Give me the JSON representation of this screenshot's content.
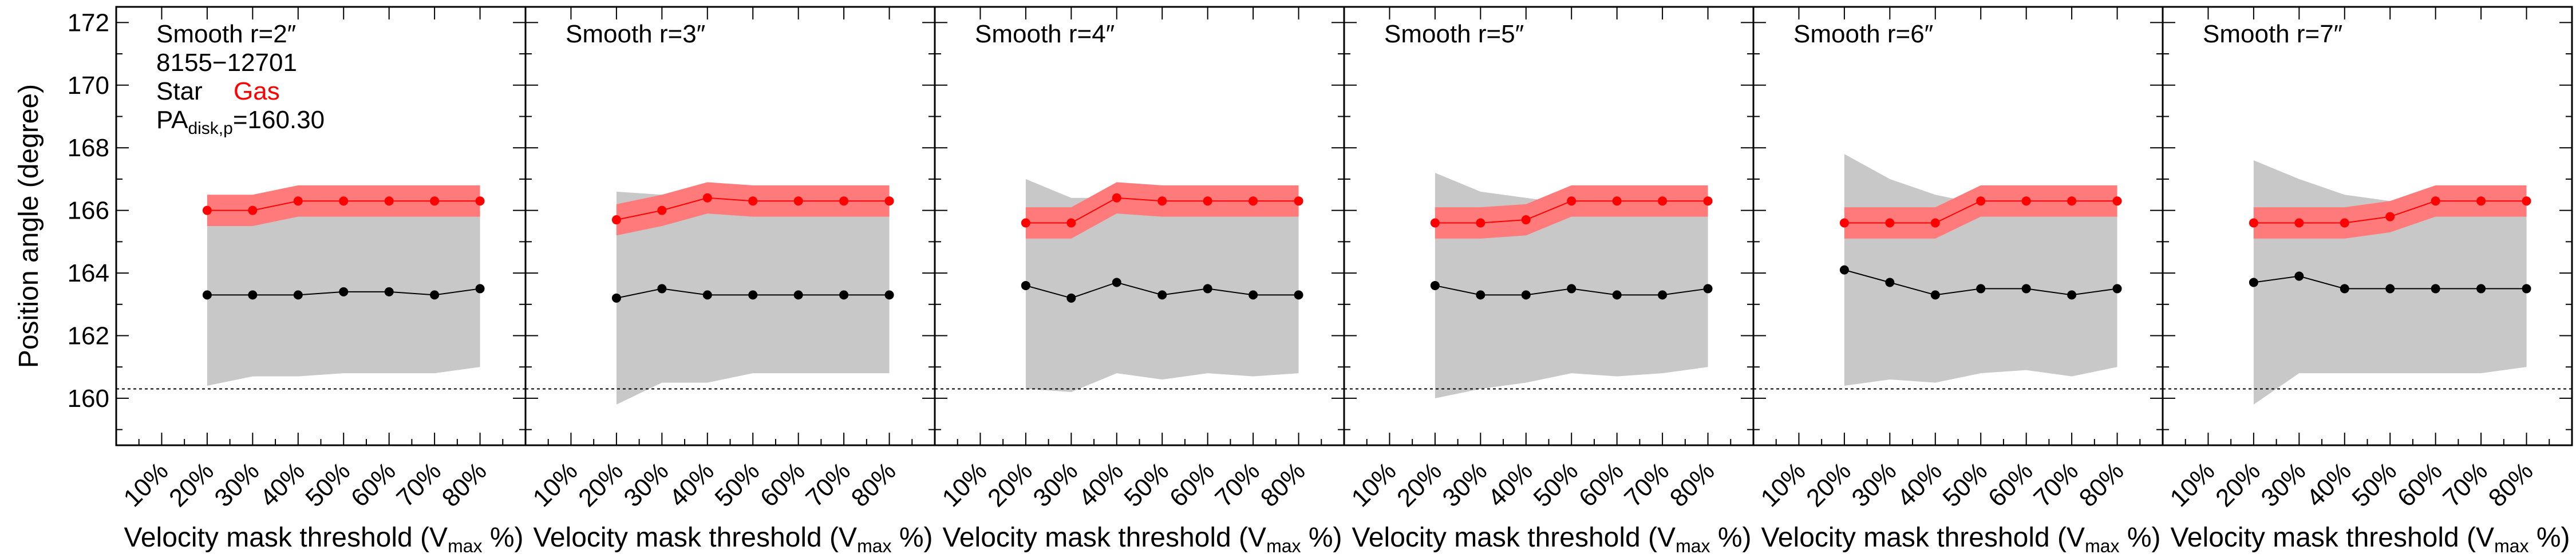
{
  "chart_data": [
    {
      "type": "line",
      "title": "Smooth r=2″",
      "annotations": [
        "8155−12701"
      ],
      "legend": {
        "star_label": "Star",
        "gas_label": "Gas",
        "pa_main": "PA",
        "pa_sub": "disk,p",
        "pa_value": "=160.30"
      },
      "ylabel": "Position angle (degree)",
      "xlabel": {
        "main": "Velocity mask threshold (V",
        "sub": "max",
        "tail": " %)"
      },
      "categories": [
        "10%",
        "20%",
        "30%",
        "40%",
        "50%",
        "60%",
        "70%",
        "80%"
      ],
      "ylim": [
        158.5,
        172.5
      ],
      "yticks": [
        160,
        162,
        164,
        166,
        168,
        170,
        172
      ],
      "reference_line": 160.3,
      "series": [
        {
          "name": "Star",
          "color": "#000000",
          "x": [
            20,
            30,
            40,
            50,
            60,
            70,
            80
          ],
          "values": [
            163.3,
            163.3,
            163.3,
            163.4,
            163.4,
            163.3,
            163.5
          ],
          "band_lower": [
            160.4,
            160.7,
            160.7,
            160.8,
            160.8,
            160.8,
            161.0
          ],
          "band_upper": [
            165.8,
            165.8,
            166.0,
            166.0,
            166.0,
            166.0,
            166.0
          ],
          "band_color": "#c8c8c8"
        },
        {
          "name": "Gas",
          "color": "#ff0000",
          "x": [
            20,
            30,
            40,
            50,
            60,
            70,
            80
          ],
          "values": [
            166.0,
            166.0,
            166.3,
            166.3,
            166.3,
            166.3,
            166.3
          ],
          "band_lower": [
            165.5,
            165.5,
            165.8,
            165.8,
            165.8,
            165.8,
            165.8
          ],
          "band_upper": [
            166.5,
            166.5,
            166.8,
            166.8,
            166.8,
            166.8,
            166.8
          ],
          "band_color": "#ff7b7b"
        }
      ]
    },
    {
      "type": "line",
      "title": "Smooth r=3″",
      "xlabel": {
        "main": "Velocity mask threshold (V",
        "sub": "max",
        "tail": " %)"
      },
      "categories": [
        "10%",
        "20%",
        "30%",
        "40%",
        "50%",
        "60%",
        "70%",
        "80%"
      ],
      "ylim": [
        158.5,
        172.5
      ],
      "reference_line": 160.3,
      "series": [
        {
          "name": "Star",
          "color": "#000000",
          "x": [
            20,
            30,
            40,
            50,
            60,
            70,
            80
          ],
          "values": [
            163.2,
            163.5,
            163.3,
            163.3,
            163.3,
            163.3,
            163.3
          ],
          "band_lower": [
            159.8,
            160.5,
            160.5,
            160.8,
            160.8,
            160.8,
            160.8
          ],
          "band_upper": [
            166.6,
            166.5,
            166.4,
            166.2,
            166.2,
            166.2,
            166.2
          ],
          "band_color": "#c8c8c8"
        },
        {
          "name": "Gas",
          "color": "#ff0000",
          "x": [
            20,
            30,
            40,
            50,
            60,
            70,
            80
          ],
          "values": [
            165.7,
            166.0,
            166.4,
            166.3,
            166.3,
            166.3,
            166.3
          ],
          "band_lower": [
            165.2,
            165.5,
            165.9,
            165.8,
            165.8,
            165.8,
            165.8
          ],
          "band_upper": [
            166.2,
            166.5,
            166.9,
            166.8,
            166.8,
            166.8,
            166.8
          ],
          "band_color": "#ff7b7b"
        }
      ]
    },
    {
      "type": "line",
      "title": "Smooth r=4″",
      "xlabel": {
        "main": "Velocity mask threshold (V",
        "sub": "max",
        "tail": " %)"
      },
      "categories": [
        "10%",
        "20%",
        "30%",
        "40%",
        "50%",
        "60%",
        "70%",
        "80%"
      ],
      "ylim": [
        158.5,
        172.5
      ],
      "reference_line": 160.3,
      "series": [
        {
          "name": "Star",
          "color": "#000000",
          "x": [
            20,
            30,
            40,
            50,
            60,
            70,
            80
          ],
          "values": [
            163.6,
            163.2,
            163.7,
            163.3,
            163.5,
            163.3,
            163.3
          ],
          "band_lower": [
            160.3,
            160.2,
            160.8,
            160.6,
            160.8,
            160.7,
            160.8
          ],
          "band_upper": [
            167.0,
            166.4,
            166.4,
            166.2,
            166.2,
            166.2,
            166.2
          ],
          "band_color": "#c8c8c8"
        },
        {
          "name": "Gas",
          "color": "#ff0000",
          "x": [
            20,
            30,
            40,
            50,
            60,
            70,
            80
          ],
          "values": [
            165.6,
            165.6,
            166.4,
            166.3,
            166.3,
            166.3,
            166.3
          ],
          "band_lower": [
            165.1,
            165.1,
            165.9,
            165.8,
            165.8,
            165.8,
            165.8
          ],
          "band_upper": [
            166.1,
            166.1,
            166.9,
            166.8,
            166.8,
            166.8,
            166.8
          ],
          "band_color": "#ff7b7b"
        }
      ]
    },
    {
      "type": "line",
      "title": "Smooth r=5″",
      "xlabel": {
        "main": "Velocity mask threshold (V",
        "sub": "max",
        "tail": " %)"
      },
      "categories": [
        "10%",
        "20%",
        "30%",
        "40%",
        "50%",
        "60%",
        "70%",
        "80%"
      ],
      "ylim": [
        158.5,
        172.5
      ],
      "reference_line": 160.3,
      "series": [
        {
          "name": "Star",
          "color": "#000000",
          "x": [
            20,
            30,
            40,
            50,
            60,
            70,
            80
          ],
          "values": [
            163.6,
            163.3,
            163.3,
            163.5,
            163.3,
            163.3,
            163.5
          ],
          "band_lower": [
            160.0,
            160.3,
            160.5,
            160.8,
            160.7,
            160.8,
            161.0
          ],
          "band_upper": [
            167.2,
            166.6,
            166.4,
            166.2,
            166.2,
            166.2,
            166.2
          ],
          "band_color": "#c8c8c8"
        },
        {
          "name": "Gas",
          "color": "#ff0000",
          "x": [
            20,
            30,
            40,
            50,
            60,
            70,
            80
          ],
          "values": [
            165.6,
            165.6,
            165.7,
            166.3,
            166.3,
            166.3,
            166.3
          ],
          "band_lower": [
            165.1,
            165.1,
            165.2,
            165.8,
            165.8,
            165.8,
            165.8
          ],
          "band_upper": [
            166.1,
            166.1,
            166.2,
            166.8,
            166.8,
            166.8,
            166.8
          ],
          "band_color": "#ff7b7b"
        }
      ]
    },
    {
      "type": "line",
      "title": "Smooth r=6″",
      "xlabel": {
        "main": "Velocity mask threshold (V",
        "sub": "max",
        "tail": " %)"
      },
      "categories": [
        "10%",
        "20%",
        "30%",
        "40%",
        "50%",
        "60%",
        "70%",
        "80%"
      ],
      "ylim": [
        158.5,
        172.5
      ],
      "reference_line": 160.3,
      "series": [
        {
          "name": "Star",
          "color": "#000000",
          "x": [
            20,
            30,
            40,
            50,
            60,
            70,
            80
          ],
          "values": [
            164.1,
            163.7,
            163.3,
            163.5,
            163.5,
            163.3,
            163.5
          ],
          "band_lower": [
            160.4,
            160.6,
            160.5,
            160.8,
            160.9,
            160.7,
            161.0
          ],
          "band_upper": [
            167.8,
            167.0,
            166.5,
            166.2,
            166.2,
            166.2,
            166.2
          ],
          "band_color": "#c8c8c8"
        },
        {
          "name": "Gas",
          "color": "#ff0000",
          "x": [
            20,
            30,
            40,
            50,
            60,
            70,
            80
          ],
          "values": [
            165.6,
            165.6,
            165.6,
            166.3,
            166.3,
            166.3,
            166.3
          ],
          "band_lower": [
            165.1,
            165.1,
            165.1,
            165.8,
            165.8,
            165.8,
            165.8
          ],
          "band_upper": [
            166.1,
            166.1,
            166.1,
            166.8,
            166.8,
            166.8,
            166.8
          ],
          "band_color": "#ff7b7b"
        }
      ]
    },
    {
      "type": "line",
      "title": "Smooth r=7″",
      "xlabel": {
        "main": "Velocity mask threshold (V",
        "sub": "max",
        "tail": " %)"
      },
      "categories": [
        "10%",
        "20%",
        "30%",
        "40%",
        "50%",
        "60%",
        "70%",
        "80%"
      ],
      "ylim": [
        158.5,
        172.5
      ],
      "reference_line": 160.3,
      "series": [
        {
          "name": "Star",
          "color": "#000000",
          "x": [
            20,
            30,
            40,
            50,
            60,
            70,
            80
          ],
          "values": [
            163.7,
            163.9,
            163.5,
            163.5,
            163.5,
            163.5,
            163.5
          ],
          "band_lower": [
            159.8,
            160.8,
            160.8,
            160.8,
            160.8,
            160.8,
            161.0
          ],
          "band_upper": [
            167.6,
            167.0,
            166.5,
            166.3,
            166.2,
            166.2,
            166.2
          ],
          "band_color": "#c8c8c8"
        },
        {
          "name": "Gas",
          "color": "#ff0000",
          "x": [
            20,
            30,
            40,
            50,
            60,
            70,
            80
          ],
          "values": [
            165.6,
            165.6,
            165.6,
            165.8,
            166.3,
            166.3,
            166.3
          ],
          "band_lower": [
            165.1,
            165.1,
            165.1,
            165.3,
            165.8,
            165.8,
            165.8
          ],
          "band_upper": [
            166.1,
            166.1,
            166.1,
            166.3,
            166.8,
            166.8,
            166.8
          ],
          "band_color": "#ff7b7b"
        }
      ]
    }
  ]
}
